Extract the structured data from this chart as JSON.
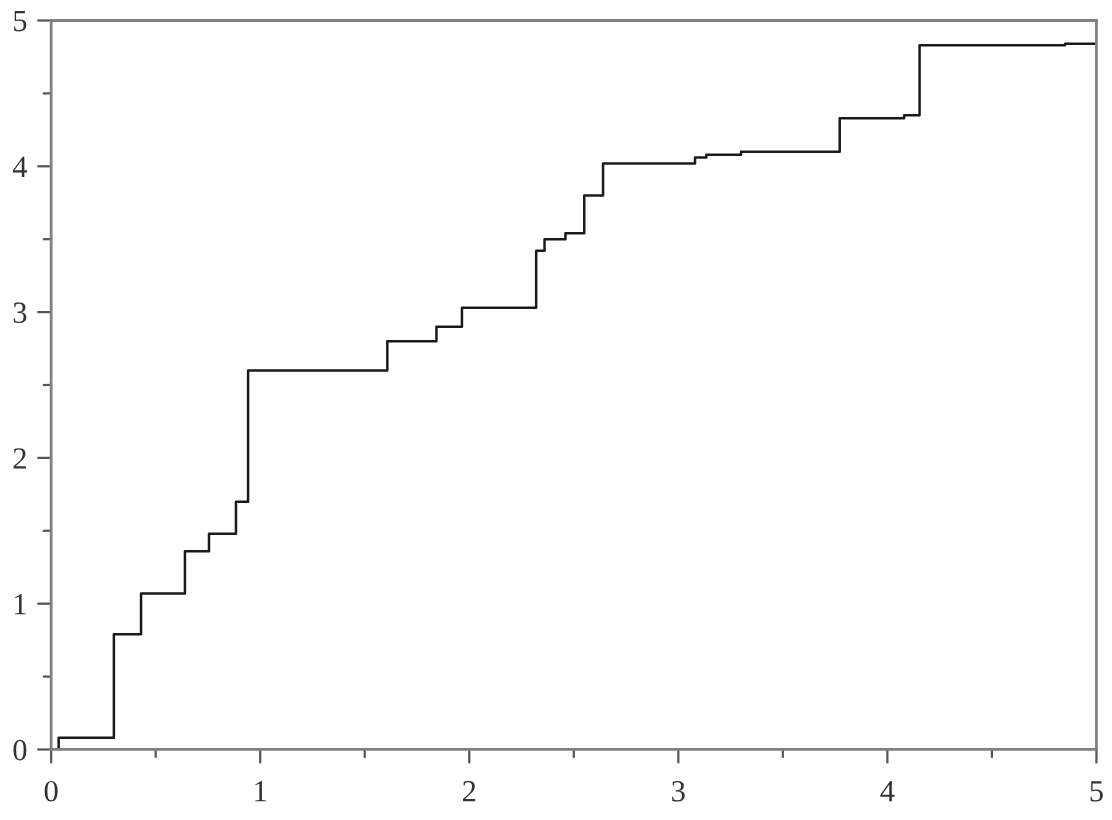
{
  "chart_data": {
    "type": "step",
    "color": "#1a1a1a",
    "x": [
      0,
      0.036,
      0.3,
      0.43,
      0.64,
      0.755,
      0.884,
      0.942,
      1.608,
      1.843,
      1.965,
      2.32,
      2.36,
      2.46,
      2.55,
      2.64,
      3.08,
      3.134,
      3.3,
      3.772,
      4.08,
      4.154,
      4.85,
      5.0
    ],
    "values": [
      0,
      0.08,
      0.79,
      1.07,
      1.36,
      1.48,
      1.7,
      2.6,
      2.8,
      2.9,
      3.03,
      3.42,
      3.5,
      3.54,
      3.8,
      4.02,
      4.06,
      4.08,
      4.1,
      4.33,
      4.35,
      4.83,
      4.84,
      4.84
    ],
    "xlim": [
      0,
      5
    ],
    "ylim": [
      0,
      5
    ],
    "xticks": [
      0,
      {
        "value": 0.5,
        "label": null
      },
      1,
      {
        "value": 1.5,
        "label": null
      },
      2,
      {
        "value": 2.5,
        "label": null
      },
      3,
      {
        "value": 3.5,
        "label": null
      },
      4,
      {
        "value": 4.5,
        "label": null
      },
      5
    ],
    "yticks": [
      0,
      {
        "value": 0.5,
        "label": null
      },
      1,
      {
        "value": 1.5,
        "label": null
      },
      2,
      {
        "value": 2.5,
        "label": null
      },
      3,
      {
        "value": 3.5,
        "label": null
      },
      4,
      {
        "value": 4.5,
        "label": null
      },
      5
    ],
    "line_style": "solid"
  }
}
